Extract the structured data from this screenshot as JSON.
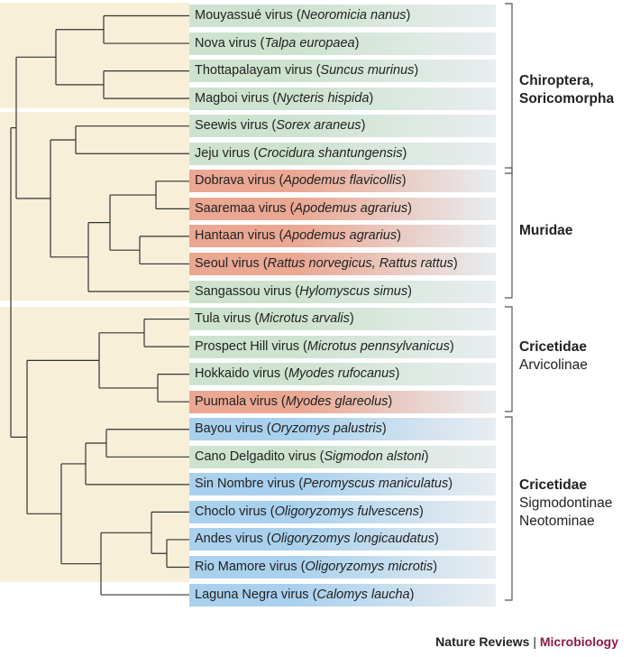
{
  "colors": {
    "green": "#cde3cf",
    "red": "#eaa792",
    "blue": "#a9d1ee",
    "fade": "#e8edf0",
    "background": "#f8efd9",
    "line": "#333333",
    "accent": "#8b1a4a"
  },
  "leaves": [
    {
      "name": "Mouyassué virus (",
      "host": "Neoromicia nanus",
      "end": ")",
      "color": "green"
    },
    {
      "name": "Nova virus (",
      "host": "Talpa europaea",
      "end": ")",
      "color": "green"
    },
    {
      "name": "Thottapalayam virus (",
      "host": "Suncus murinus",
      "end": ")",
      "color": "green"
    },
    {
      "name": "Magboi virus (",
      "host": "Nycteris hispida",
      "end": ")",
      "color": "green"
    },
    {
      "name": "Seewis virus (",
      "host": "Sorex araneus",
      "end": ")",
      "color": "green"
    },
    {
      "name": "Jeju virus (",
      "host": "Crocidura shantungensis",
      "end": ")",
      "color": "green"
    },
    {
      "name": "Dobrava virus (",
      "host": "Apodemus flavicollis",
      "end": ")",
      "color": "red"
    },
    {
      "name": "Saaremaa virus (",
      "host": "Apodemus agrarius",
      "end": ")",
      "color": "red"
    },
    {
      "name": "Hantaan virus (",
      "host": "Apodemus agrarius",
      "end": ")",
      "color": "red"
    },
    {
      "name": "Seoul virus (",
      "host": "Rattus norvegicus, Rattus rattus",
      "end": ")",
      "color": "red"
    },
    {
      "name": "Sangassou virus (",
      "host": "Hylomyscus simus",
      "end": ")",
      "color": "green"
    },
    {
      "name": "Tula virus (",
      "host": "Microtus arvalis",
      "end": ")",
      "color": "green"
    },
    {
      "name": "Prospect Hill virus (",
      "host": "Microtus pennsylvanicus",
      "end": ")",
      "color": "green"
    },
    {
      "name": "Hokkaido virus (",
      "host": "Myodes rufocanus",
      "end": ")",
      "color": "green"
    },
    {
      "name": "Puumala virus (",
      "host": "Myodes glareolus",
      "end": ")",
      "color": "red"
    },
    {
      "name": "Bayou virus (",
      "host": "Oryzomys palustris",
      "end": ")",
      "color": "blue"
    },
    {
      "name": "Cano Delgadito virus (",
      "host": "Sigmodon alstoni",
      "end": ")",
      "color": "green"
    },
    {
      "name": "Sin Nombre virus (",
      "host": "Peromyscus maniculatus",
      "end": ")",
      "color": "blue"
    },
    {
      "name": "Choclo virus (",
      "host": "Oligoryzomys fulvescens",
      "end": ")",
      "color": "blue"
    },
    {
      "name": "Andes virus (",
      "host": "Oligoryzomys longicaudatus",
      "end": ")",
      "color": "blue"
    },
    {
      "name": "Rio Mamore virus (",
      "host": "Oligoryzomys microtis",
      "end": ")",
      "color": "blue"
    },
    {
      "name": "Laguna Negra virus (",
      "host": "Calomys laucha",
      "end": ")",
      "color": "blue"
    }
  ],
  "groups": [
    {
      "title": "Chiroptera,",
      "title2": "Soricomorpha",
      "sub1": "",
      "sub2": ""
    },
    {
      "title": "Muridae",
      "title2": "",
      "sub1": "",
      "sub2": ""
    },
    {
      "title": "Cricetidae",
      "title2": "",
      "sub1": "Arvicolinae",
      "sub2": ""
    },
    {
      "title": "Cricetidae",
      "title2": "",
      "sub1": "Sigmodontinae",
      "sub2": "Neotominae"
    }
  ],
  "footer": {
    "journal": "Nature Reviews",
    "separator": "|",
    "section": "Microbiology"
  }
}
